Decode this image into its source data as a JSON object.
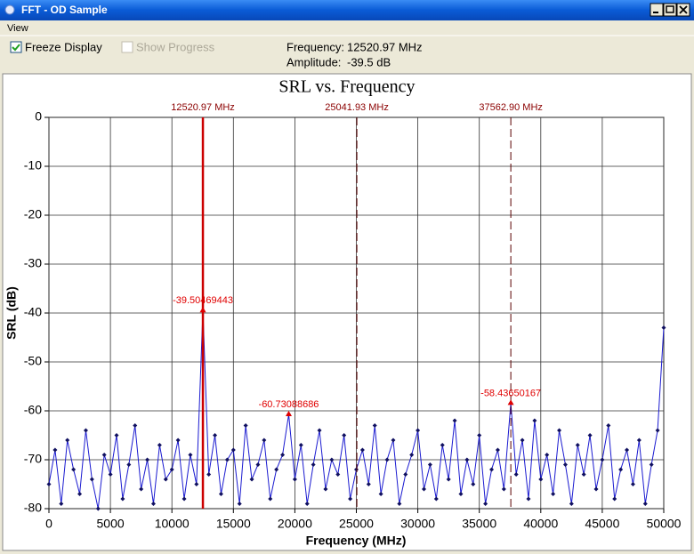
{
  "window": {
    "title": "FFT - OD Sample",
    "menu": [
      "View"
    ]
  },
  "toolbar": {
    "freeze": {
      "label": "Freeze Display",
      "checked": true,
      "enabled": true
    },
    "progress": {
      "label": "Show Progress",
      "checked": false,
      "enabled": false
    },
    "frequency_label": "Frequency:",
    "frequency_value": "12520.97 MHz",
    "amplitude_label": "Amplitude:",
    "amplitude_value": "-39.5 dB"
  },
  "chart_data": {
    "type": "line",
    "title": "SRL vs. Frequency",
    "x_label": "Frequency (MHz)",
    "y_label": "SRL (dB)",
    "x": [
      0,
      500,
      1000,
      1500,
      2000,
      2500,
      3000,
      3500,
      4000,
      4500,
      5000,
      5500,
      6000,
      6500,
      7000,
      7500,
      8000,
      8500,
      9000,
      9500,
      10000,
      10500,
      11000,
      11500,
      12000,
      12520.97,
      13000,
      13500,
      14000,
      14500,
      15000,
      15500,
      16000,
      16500,
      17000,
      17500,
      18000,
      18500,
      19000,
      19500,
      20000,
      20500,
      21000,
      21500,
      22000,
      22500,
      23000,
      23500,
      24000,
      24500,
      25000,
      25500,
      26000,
      26500,
      27000,
      27500,
      28000,
      28500,
      29000,
      29500,
      30000,
      30500,
      31000,
      31500,
      32000,
      32500,
      33000,
      33500,
      34000,
      34500,
      35000,
      35500,
      36000,
      36500,
      37000,
      37562.9,
      38000,
      38500,
      39000,
      39500,
      40000,
      40500,
      41000,
      41500,
      42000,
      42500,
      43000,
      43500,
      44000,
      44500,
      45000,
      45500,
      46000,
      46500,
      47000,
      47500,
      48000,
      48500,
      49000,
      49500,
      50000
    ],
    "series": [
      {
        "color": "#1a1ad0",
        "marker_color": "#101060",
        "values": [
          -75,
          -68,
          -79,
          -66,
          -72,
          -77,
          -64,
          -74,
          -80,
          -69,
          -73,
          -65,
          -78,
          -71,
          -63,
          -76,
          -70,
          -79,
          -67,
          -74,
          -72,
          -66,
          -78,
          -69,
          -75,
          -39.50469443,
          -73,
          -65,
          -77,
          -70,
          -68,
          -79,
          -63,
          -74,
          -71,
          -66,
          -78,
          -72,
          -69,
          -60.73088686,
          -74,
          -67,
          -79,
          -71,
          -64,
          -76,
          -70,
          -73,
          -65,
          -78,
          -72,
          -68,
          -75,
          -63,
          -77,
          -70,
          -66,
          -79,
          -73,
          -69,
          -64,
          -76,
          -71,
          -78,
          -67,
          -74,
          -62,
          -77,
          -70,
          -75,
          -65,
          -79,
          -72,
          -68,
          -76,
          -58.43650167,
          -73,
          -66,
          -78,
          -62,
          -74,
          -69,
          -77,
          -64,
          -71,
          -79,
          -67,
          -73,
          -65,
          -76,
          -70,
          -63,
          -78,
          -72,
          -68,
          -75,
          -66,
          -79,
          -71,
          -64,
          -43
        ]
      }
    ],
    "xlim": [
      0,
      50000
    ],
    "ylim": [
      -80,
      0
    ],
    "xticks": [
      0,
      5000,
      10000,
      15000,
      20000,
      25000,
      30000,
      35000,
      40000,
      45000,
      50000
    ],
    "yticks": [
      0,
      -10,
      -20,
      -30,
      -40,
      -50,
      -60,
      -70,
      -80
    ],
    "grid": true,
    "cursors": [
      {
        "x": 12520.97,
        "label": "12520.97 MHz",
        "style": "solid"
      },
      {
        "x": 25041.93,
        "label": "25041.93 MHz",
        "style": "dashed"
      },
      {
        "x": 37562.9,
        "label": "37562.90 MHz",
        "style": "dashed"
      }
    ],
    "annotations": [
      {
        "x": 12520.97,
        "y": -39.50469443
      },
      {
        "x": 19500,
        "y": -60.73088686
      },
      {
        "x": 37562.9,
        "y": -58.43650167
      }
    ],
    "annotation_color": "#e00000"
  }
}
